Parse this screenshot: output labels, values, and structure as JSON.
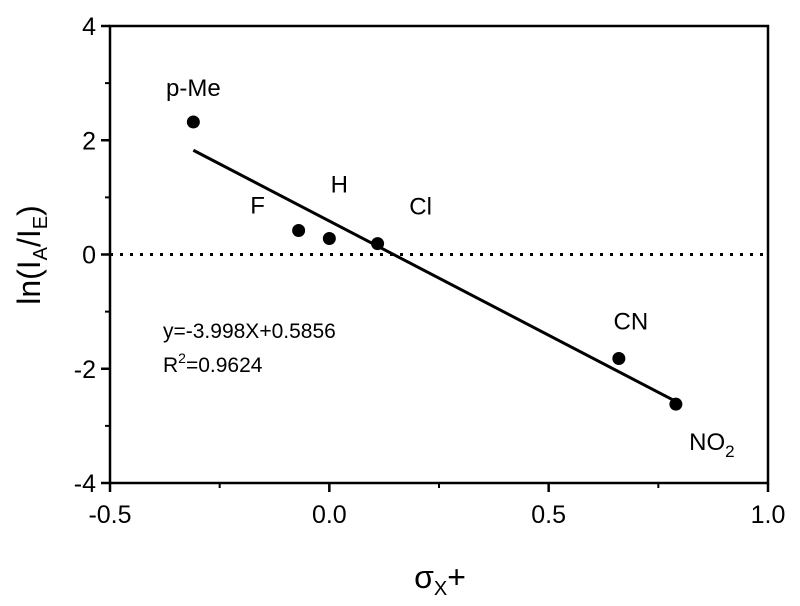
{
  "chart_data": {
    "type": "scatter",
    "title": "",
    "xlabel": {
      "main": "σ",
      "sub": "X",
      "after": "+"
    },
    "ylabel": {
      "pre": "ln(I",
      "sub1": "A",
      "mid": "/I",
      "sub2": "E",
      "post": ")"
    },
    "xlim": [
      -0.5,
      1.0
    ],
    "ylim": [
      -4,
      4
    ],
    "x_ticks": [
      -0.5,
      0.0,
      0.5,
      1.0
    ],
    "x_tick_labels": [
      "-0.5",
      "0.0",
      "0.5",
      "1.0"
    ],
    "y_ticks": [
      -4,
      -2,
      0,
      2,
      4
    ],
    "y_tick_labels": [
      "-4",
      "-2",
      "0",
      "2",
      "4"
    ],
    "grid": false,
    "reference_line": {
      "y": 0,
      "style": "dotted"
    },
    "points": [
      {
        "x": -0.31,
        "y": 2.32
      },
      {
        "x": -0.07,
        "y": 0.42
      },
      {
        "x": 0.0,
        "y": 0.28
      },
      {
        "x": 0.11,
        "y": 0.19
      },
      {
        "x": 0.66,
        "y": -1.82
      },
      {
        "x": 0.79,
        "y": -2.62
      }
    ],
    "point_labels": [
      {
        "text": "p-Me",
        "sub": ""
      },
      {
        "text": "F",
        "sub": ""
      },
      {
        "text": "H",
        "sub": ""
      },
      {
        "text": "Cl",
        "sub": ""
      },
      {
        "text": "CN",
        "sub": ""
      },
      {
        "text": "NO",
        "sub": "2"
      }
    ],
    "fit_line": {
      "slope": -3.998,
      "intercept": 0.5856,
      "x_range": [
        -0.31,
        0.79
      ]
    },
    "annotation": {
      "equation": "y=-3.998X+0.5856",
      "r2_pre": "R",
      "r2_sup": "2",
      "r2_post": "=0.9624"
    }
  }
}
